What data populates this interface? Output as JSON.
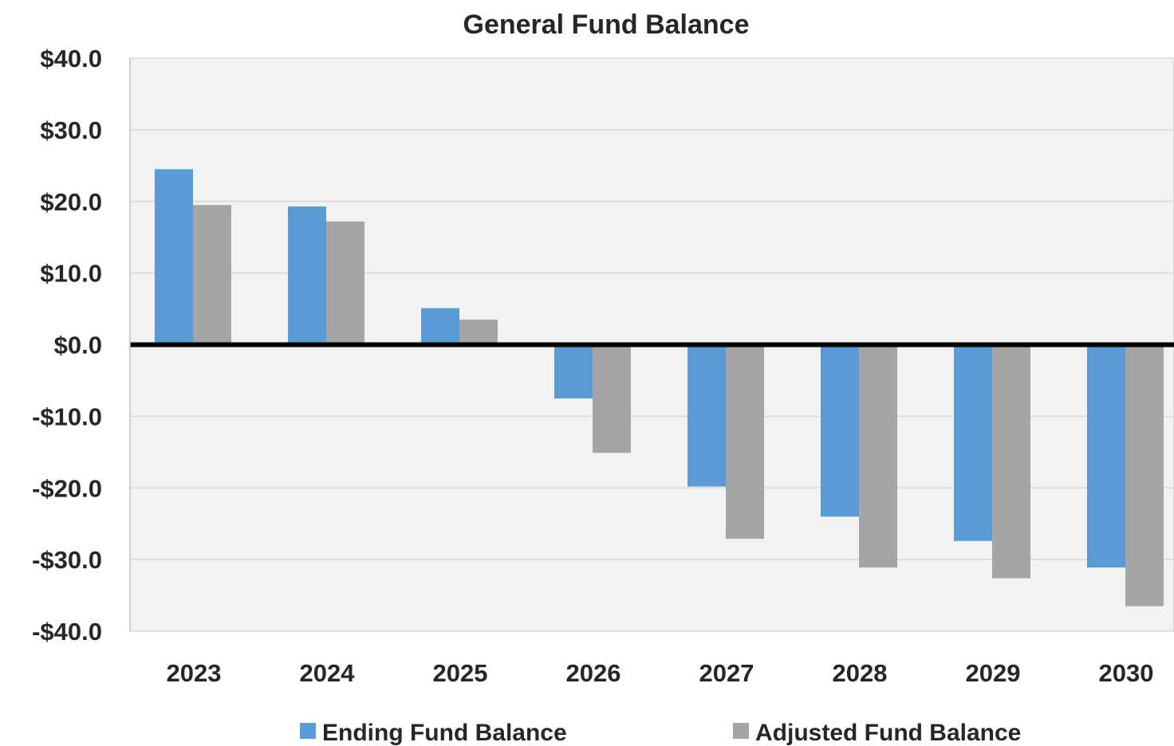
{
  "chart_data": {
    "type": "bar",
    "title": "General Fund Balance",
    "xlabel": "",
    "ylabel": "",
    "categories": [
      "2023",
      "2024",
      "2025",
      "2026",
      "2027",
      "2028",
      "2029",
      "2030"
    ],
    "series": [
      {
        "name": "Ending Fund Balance",
        "color": "#5b9bd5",
        "values": [
          24.5,
          19.3,
          5.1,
          -7.5,
          -19.8,
          -24.0,
          -27.4,
          -31.1
        ]
      },
      {
        "name": "Adjusted Fund Balance",
        "color": "#a5a5a5",
        "values": [
          19.5,
          17.2,
          3.5,
          -15.1,
          -27.1,
          -31.1,
          -32.6,
          -36.5
        ]
      }
    ],
    "ylim": [
      -40,
      40
    ],
    "yticks": [
      40,
      30,
      20,
      10,
      0,
      -10,
      -20,
      -30,
      -40
    ],
    "ytick_labels": [
      "$40.0",
      "$30.0",
      "$20.0",
      "$10.0",
      "$0.0",
      "-$10.0",
      "-$20.0",
      "-$30.0",
      "-$40.0"
    ],
    "grid": true,
    "legend_position": "bottom",
    "plot_background": "#f2f2f2",
    "gridline_color": "#d9d9d9",
    "zero_line_color": "#000000"
  }
}
